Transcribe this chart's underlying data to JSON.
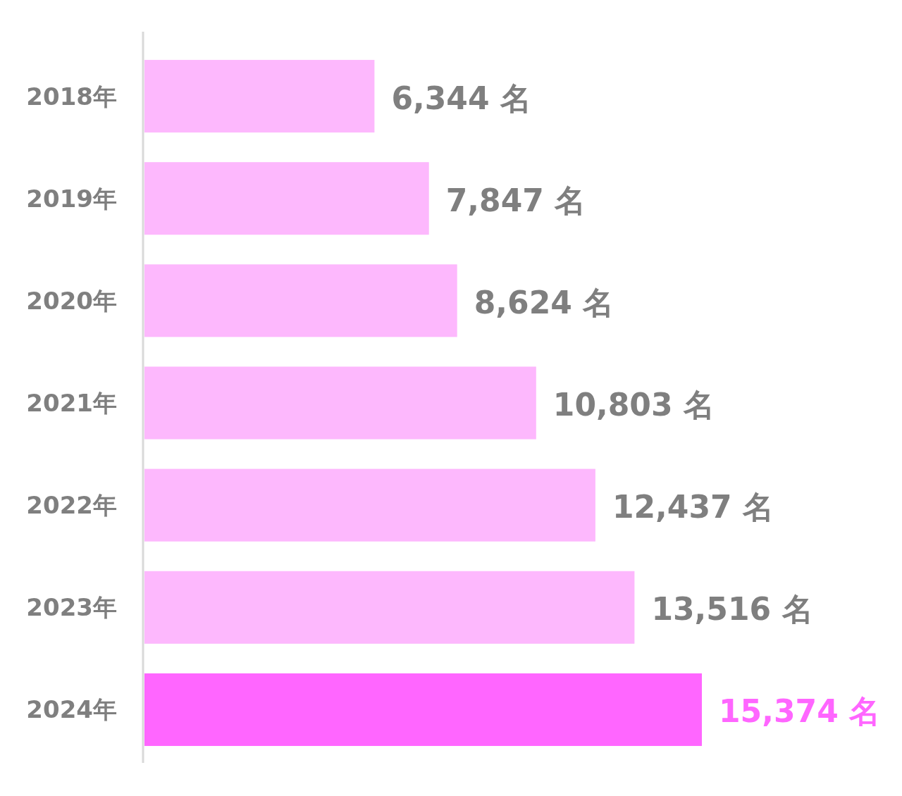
{
  "chart_data": {
    "type": "bar",
    "orientation": "horizontal",
    "categories": [
      "2018年",
      "2019年",
      "2020年",
      "2021年",
      "2022年",
      "2023年",
      "2024年"
    ],
    "values": [
      6344,
      7847,
      8624,
      10803,
      12437,
      13516,
      15374
    ],
    "colors": [
      "#fdb8fd",
      "#fdb8fd",
      "#fdb8fd",
      "#fdb8fd",
      "#fdb8fd",
      "#fdb8fd",
      "#ff66ff"
    ],
    "value_labels": [
      "6,344 名",
      "7,847 名",
      "8,624 名",
      "10,803 名",
      "12,437 名",
      "13,516 名",
      "15,374 名"
    ]
  }
}
